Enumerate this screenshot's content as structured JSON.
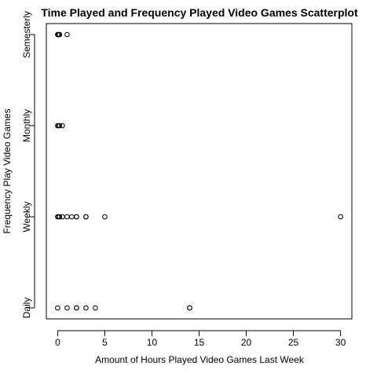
{
  "chart_data": {
    "type": "scatter",
    "title": "Time Played and Frequency Played Video Games Scatterplot",
    "xlabel": "Amount of Hours Played Video Games Last Week",
    "ylabel": "Frequency Play Video Games",
    "xlim": [
      -1.2,
      31.2
    ],
    "x_ticks": [
      0,
      5,
      10,
      15,
      20,
      25,
      30
    ],
    "y_categories": [
      "Daily",
      "Weekly",
      "Monthly",
      "Semesterly"
    ],
    "grid": false,
    "legend": "none",
    "point_style": "open-circle",
    "series": [
      {
        "points": [
          {
            "x": 0,
            "y": "Daily"
          },
          {
            "x": 1,
            "y": "Daily"
          },
          {
            "x": 2,
            "y": "Daily"
          },
          {
            "x": 2,
            "y": "Daily"
          },
          {
            "x": 3,
            "y": "Daily"
          },
          {
            "x": 4,
            "y": "Daily"
          },
          {
            "x": 14,
            "y": "Daily"
          },
          {
            "x": 14,
            "y": "Daily"
          },
          {
            "x": 0,
            "y": "Weekly"
          },
          {
            "x": 0.1,
            "y": "Weekly"
          },
          {
            "x": 0.2,
            "y": "Weekly"
          },
          {
            "x": 0.5,
            "y": "Weekly"
          },
          {
            "x": 1,
            "y": "Weekly"
          },
          {
            "x": 1.5,
            "y": "Weekly"
          },
          {
            "x": 2,
            "y": "Weekly"
          },
          {
            "x": 2,
            "y": "Weekly"
          },
          {
            "x": 3,
            "y": "Weekly"
          },
          {
            "x": 3,
            "y": "Weekly"
          },
          {
            "x": 5,
            "y": "Weekly"
          },
          {
            "x": 30,
            "y": "Weekly"
          },
          {
            "x": 0,
            "y": "Monthly"
          },
          {
            "x": 0.1,
            "y": "Monthly"
          },
          {
            "x": 0.2,
            "y": "Monthly"
          },
          {
            "x": 0.5,
            "y": "Monthly"
          },
          {
            "x": 0,
            "y": "Semesterly"
          },
          {
            "x": 0.05,
            "y": "Semesterly"
          },
          {
            "x": 0.1,
            "y": "Semesterly"
          },
          {
            "x": 0.2,
            "y": "Semesterly"
          },
          {
            "x": 1,
            "y": "Semesterly"
          }
        ]
      }
    ]
  }
}
